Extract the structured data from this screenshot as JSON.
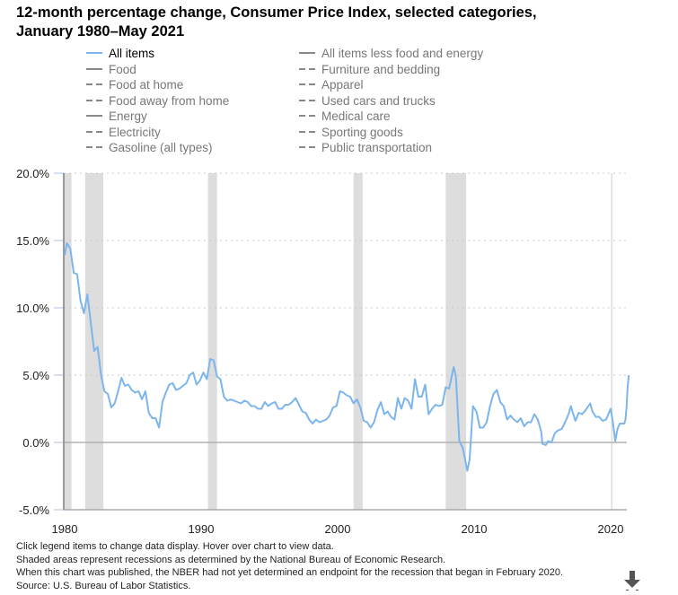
{
  "title_line1": "12-month percentage change, Consumer Price Index, selected categories,",
  "title_line2": "January 1980–May 2021",
  "legend": [
    {
      "label": "All items",
      "style": "solid",
      "color": "#7cb5ec",
      "active": true
    },
    {
      "label": "Food",
      "style": "solid",
      "color": "#888888",
      "active": false
    },
    {
      "label": "Food at home",
      "style": "dashed",
      "color": "#888888",
      "active": false
    },
    {
      "label": "Food away from home",
      "style": "dashed",
      "color": "#888888",
      "active": false
    },
    {
      "label": "Energy",
      "style": "solid",
      "color": "#888888",
      "active": false
    },
    {
      "label": "Electricity",
      "style": "dashed",
      "color": "#888888",
      "active": false
    },
    {
      "label": "Gasoline (all types)",
      "style": "dashed",
      "color": "#888888",
      "active": false
    },
    {
      "label": "All items less food and energy",
      "style": "solid",
      "color": "#888888",
      "active": false
    },
    {
      "label": "Furniture and bedding",
      "style": "dashed",
      "color": "#888888",
      "active": false
    },
    {
      "label": "Apparel",
      "style": "dashed",
      "color": "#888888",
      "active": false
    },
    {
      "label": "Used cars and trucks",
      "style": "dashed",
      "color": "#888888",
      "active": false
    },
    {
      "label": "Medical care",
      "style": "dashed",
      "color": "#888888",
      "active": false
    },
    {
      "label": "Sporting goods",
      "style": "dashed",
      "color": "#888888",
      "active": false
    },
    {
      "label": "Public transportation",
      "style": "dashed",
      "color": "#888888",
      "active": false
    }
  ],
  "footnotes": [
    "Click legend items to change data display. Hover over chart to view data.",
    "Shaded areas represent recessions as determined by the National Bureau of Economic Research.",
    "When this chart was published, the NBER had not yet determined an endpoint for the recession that began in February 2020.",
    "Source: U.S. Bureau of Labor Statistics."
  ],
  "download_icon": "download-arrow-icon",
  "chart_data": {
    "type": "line",
    "ylim": [
      -5,
      20
    ],
    "xlim": [
      "1980-01",
      "2021-05"
    ],
    "y_ticks": [
      20,
      15,
      10,
      5,
      0,
      -5
    ],
    "y_tick_labels": [
      "20.0%",
      "15.0%",
      "10.0%",
      "5.0%",
      "0.0%",
      "-5.0%"
    ],
    "x_tick_labels": [
      "1980",
      "1990",
      "2000",
      "2010",
      "2020"
    ],
    "grid": true,
    "recession_color": "#dddddd",
    "recessions": [
      [
        "1980-01",
        "1980-07"
      ],
      [
        "1981-07",
        "1982-11"
      ],
      [
        "1990-07",
        "1991-03"
      ],
      [
        "2001-03",
        "2001-11"
      ],
      [
        "2007-12",
        "2009-06"
      ],
      [
        "2020-02",
        null
      ]
    ],
    "series": [
      {
        "name": "All items",
        "color": "#7cb5ec",
        "points": [
          [
            "1980-01",
            13.9
          ],
          [
            "1980-03",
            14.8
          ],
          [
            "1980-06",
            14.4
          ],
          [
            "1980-09",
            12.6
          ],
          [
            "1980-12",
            12.5
          ],
          [
            "1981-03",
            10.5
          ],
          [
            "1981-06",
            9.6
          ],
          [
            "1981-09",
            11.0
          ],
          [
            "1981-12",
            8.9
          ],
          [
            "1982-03",
            6.8
          ],
          [
            "1982-06",
            7.1
          ],
          [
            "1982-09",
            5.0
          ],
          [
            "1982-12",
            3.8
          ],
          [
            "1983-03",
            3.6
          ],
          [
            "1983-06",
            2.6
          ],
          [
            "1983-09",
            2.9
          ],
          [
            "1983-12",
            3.8
          ],
          [
            "1984-03",
            4.8
          ],
          [
            "1984-06",
            4.2
          ],
          [
            "1984-09",
            4.3
          ],
          [
            "1984-12",
            3.9
          ],
          [
            "1985-03",
            3.7
          ],
          [
            "1985-06",
            3.8
          ],
          [
            "1985-09",
            3.2
          ],
          [
            "1985-12",
            3.8
          ],
          [
            "1986-03",
            2.2
          ],
          [
            "1986-06",
            1.8
          ],
          [
            "1986-09",
            1.8
          ],
          [
            "1986-12",
            1.1
          ],
          [
            "1987-03",
            3.0
          ],
          [
            "1987-06",
            3.7
          ],
          [
            "1987-09",
            4.3
          ],
          [
            "1987-12",
            4.4
          ],
          [
            "1988-03",
            3.9
          ],
          [
            "1988-06",
            4.0
          ],
          [
            "1988-09",
            4.2
          ],
          [
            "1988-12",
            4.4
          ],
          [
            "1989-03",
            5.0
          ],
          [
            "1989-06",
            5.2
          ],
          [
            "1989-09",
            4.3
          ],
          [
            "1989-12",
            4.6
          ],
          [
            "1990-03",
            5.2
          ],
          [
            "1990-06",
            4.7
          ],
          [
            "1990-09",
            6.2
          ],
          [
            "1990-12",
            6.1
          ],
          [
            "1991-03",
            4.9
          ],
          [
            "1991-06",
            4.7
          ],
          [
            "1991-09",
            3.4
          ],
          [
            "1991-12",
            3.1
          ],
          [
            "1992-03",
            3.2
          ],
          [
            "1992-06",
            3.1
          ],
          [
            "1992-09",
            3.0
          ],
          [
            "1992-12",
            2.9
          ],
          [
            "1993-03",
            3.1
          ],
          [
            "1993-06",
            3.0
          ],
          [
            "1993-09",
            2.7
          ],
          [
            "1993-12",
            2.7
          ],
          [
            "1994-03",
            2.5
          ],
          [
            "1994-06",
            2.5
          ],
          [
            "1994-09",
            3.0
          ],
          [
            "1994-12",
            2.7
          ],
          [
            "1995-03",
            2.9
          ],
          [
            "1995-06",
            3.0
          ],
          [
            "1995-09",
            2.5
          ],
          [
            "1995-12",
            2.5
          ],
          [
            "1996-03",
            2.8
          ],
          [
            "1996-06",
            2.8
          ],
          [
            "1996-09",
            3.0
          ],
          [
            "1996-12",
            3.3
          ],
          [
            "1997-03",
            2.8
          ],
          [
            "1997-06",
            2.3
          ],
          [
            "1997-09",
            2.2
          ],
          [
            "1997-12",
            1.7
          ],
          [
            "1998-03",
            1.4
          ],
          [
            "1998-06",
            1.7
          ],
          [
            "1998-09",
            1.5
          ],
          [
            "1998-12",
            1.6
          ],
          [
            "1999-03",
            1.7
          ],
          [
            "1999-06",
            2.0
          ],
          [
            "1999-09",
            2.6
          ],
          [
            "1999-12",
            2.7
          ],
          [
            "2000-03",
            3.8
          ],
          [
            "2000-06",
            3.7
          ],
          [
            "2000-09",
            3.5
          ],
          [
            "2000-12",
            3.4
          ],
          [
            "2001-03",
            2.9
          ],
          [
            "2001-06",
            3.2
          ],
          [
            "2001-09",
            2.6
          ],
          [
            "2001-12",
            1.6
          ],
          [
            "2002-03",
            1.5
          ],
          [
            "2002-06",
            1.1
          ],
          [
            "2002-09",
            1.5
          ],
          [
            "2002-12",
            2.4
          ],
          [
            "2003-03",
            3.0
          ],
          [
            "2003-06",
            2.1
          ],
          [
            "2003-09",
            2.3
          ],
          [
            "2003-12",
            1.9
          ],
          [
            "2004-03",
            1.7
          ],
          [
            "2004-06",
            3.3
          ],
          [
            "2004-09",
            2.5
          ],
          [
            "2004-12",
            3.3
          ],
          [
            "2005-03",
            3.1
          ],
          [
            "2005-06",
            2.5
          ],
          [
            "2005-09",
            4.7
          ],
          [
            "2005-12",
            3.4
          ],
          [
            "2006-03",
            3.4
          ],
          [
            "2006-06",
            4.3
          ],
          [
            "2006-09",
            2.1
          ],
          [
            "2006-12",
            2.5
          ],
          [
            "2007-03",
            2.8
          ],
          [
            "2007-06",
            2.7
          ],
          [
            "2007-09",
            2.8
          ],
          [
            "2007-12",
            4.1
          ],
          [
            "2008-03",
            4.0
          ],
          [
            "2008-07",
            5.6
          ],
          [
            "2008-09",
            4.9
          ],
          [
            "2008-12",
            0.1
          ],
          [
            "2009-03",
            -0.4
          ],
          [
            "2009-07",
            -2.1
          ],
          [
            "2009-09",
            -1.3
          ],
          [
            "2009-12",
            2.7
          ],
          [
            "2010-03",
            2.3
          ],
          [
            "2010-06",
            1.1
          ],
          [
            "2010-09",
            1.1
          ],
          [
            "2010-12",
            1.5
          ],
          [
            "2011-03",
            2.7
          ],
          [
            "2011-06",
            3.6
          ],
          [
            "2011-09",
            3.9
          ],
          [
            "2011-12",
            3.0
          ],
          [
            "2012-03",
            2.7
          ],
          [
            "2012-06",
            1.7
          ],
          [
            "2012-09",
            2.0
          ],
          [
            "2012-12",
            1.7
          ],
          [
            "2013-03",
            1.5
          ],
          [
            "2013-06",
            1.8
          ],
          [
            "2013-09",
            1.2
          ],
          [
            "2013-12",
            1.5
          ],
          [
            "2014-03",
            1.5
          ],
          [
            "2014-06",
            2.1
          ],
          [
            "2014-09",
            1.7
          ],
          [
            "2014-12",
            0.8
          ],
          [
            "2015-01",
            -0.1
          ],
          [
            "2015-04",
            -0.2
          ],
          [
            "2015-06",
            0.1
          ],
          [
            "2015-09",
            0.0
          ],
          [
            "2015-12",
            0.7
          ],
          [
            "2016-03",
            0.9
          ],
          [
            "2016-06",
            1.0
          ],
          [
            "2016-09",
            1.5
          ],
          [
            "2016-12",
            2.1
          ],
          [
            "2017-02",
            2.7
          ],
          [
            "2017-06",
            1.6
          ],
          [
            "2017-09",
            2.2
          ],
          [
            "2017-12",
            2.1
          ],
          [
            "2018-03",
            2.4
          ],
          [
            "2018-07",
            2.9
          ],
          [
            "2018-09",
            2.3
          ],
          [
            "2018-12",
            1.9
          ],
          [
            "2019-03",
            1.9
          ],
          [
            "2019-06",
            1.6
          ],
          [
            "2019-09",
            1.7
          ],
          [
            "2019-12",
            2.3
          ],
          [
            "2020-01",
            2.5
          ],
          [
            "2020-03",
            1.5
          ],
          [
            "2020-05",
            0.1
          ],
          [
            "2020-07",
            1.0
          ],
          [
            "2020-09",
            1.4
          ],
          [
            "2020-12",
            1.4
          ],
          [
            "2021-01",
            1.4
          ],
          [
            "2021-02",
            1.7
          ],
          [
            "2021-03",
            2.6
          ],
          [
            "2021-04",
            4.2
          ],
          [
            "2021-05",
            5.0
          ]
        ]
      }
    ]
  }
}
